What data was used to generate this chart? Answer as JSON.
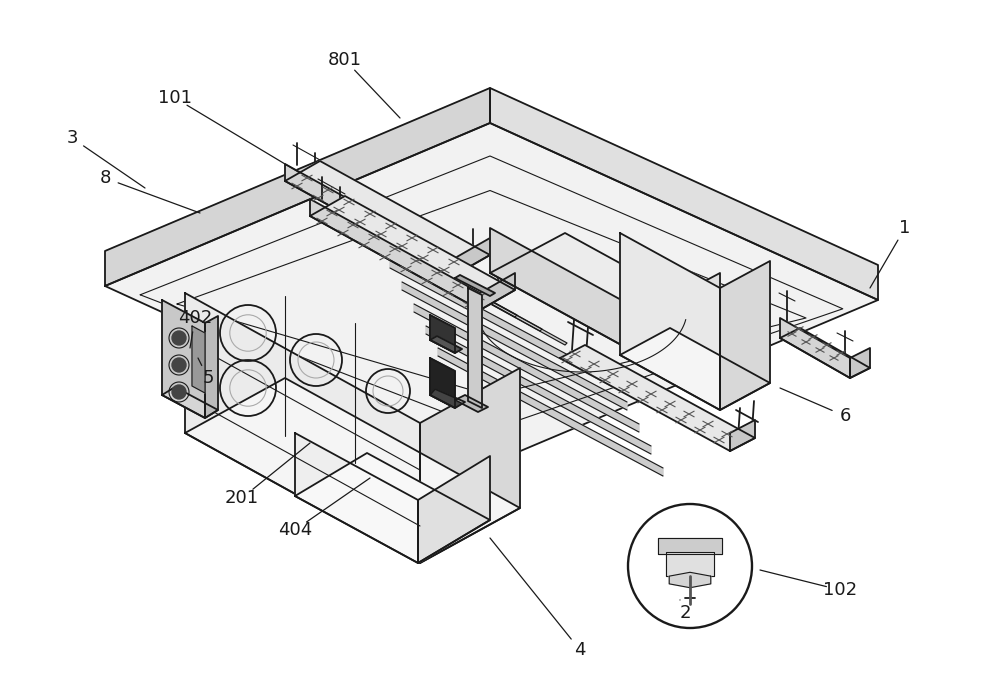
{
  "background_color": "#ffffff",
  "line_color": "#1a1a1a",
  "label_color": "#1a1a1a",
  "label_fontsize": 13,
  "fill_top": "#f5f5f5",
  "fill_front": "#e0e0e0",
  "fill_right": "#d0d0d0",
  "fill_base_top": "#f0f0f0",
  "fill_base_front": "#d8d8d8",
  "fill_base_side": "#e4e4e4"
}
